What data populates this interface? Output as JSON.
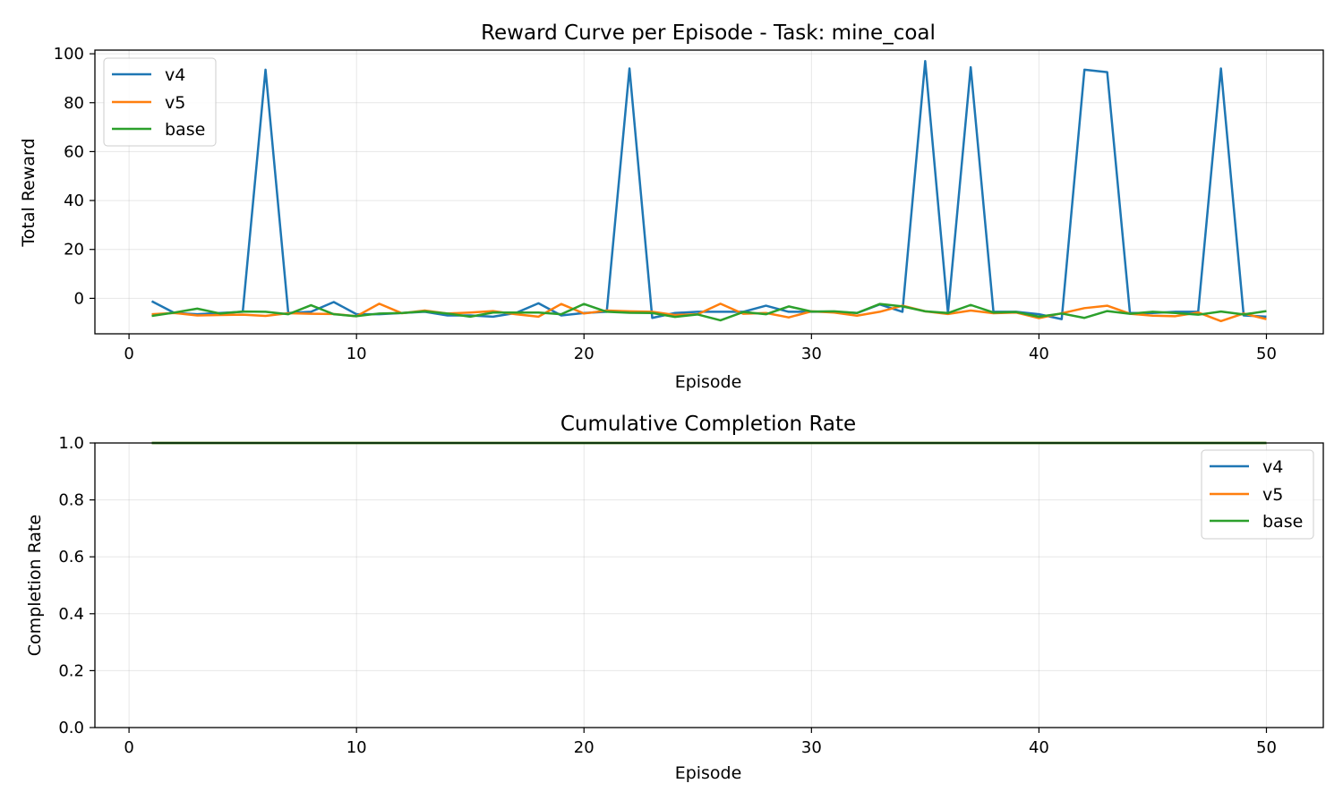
{
  "chart_data": [
    {
      "type": "line",
      "title": "Reward Curve per Episode - Task: mine_coal",
      "xlabel": "Episode",
      "ylabel": "Total Reward",
      "xlim": [
        -1.5,
        52.5
      ],
      "ylim": [
        -14.5,
        101.5
      ],
      "xticks": [
        0,
        10,
        20,
        30,
        40,
        50
      ],
      "yticks": [
        0,
        20,
        40,
        60,
        80,
        100
      ],
      "grid": true,
      "legend": "top-left",
      "x": [
        1,
        2,
        3,
        4,
        5,
        6,
        7,
        8,
        9,
        10,
        11,
        12,
        13,
        14,
        15,
        16,
        17,
        18,
        19,
        20,
        21,
        22,
        23,
        24,
        25,
        26,
        27,
        28,
        29,
        30,
        31,
        32,
        33,
        34,
        35,
        36,
        37,
        38,
        39,
        40,
        41,
        42,
        43,
        44,
        45,
        46,
        47,
        48,
        49,
        50
      ],
      "series": [
        {
          "name": "v4",
          "color": "#1f77b4",
          "values": [
            -1.2,
            -6,
            -6.5,
            -6,
            -5.5,
            93.5,
            -6,
            -5.5,
            -1.5,
            -6.5,
            -6.5,
            -6,
            -5.5,
            -7,
            -7,
            -7.5,
            -6,
            -2,
            -7,
            -6,
            -5.5,
            94,
            -8,
            -6,
            -5.5,
            -5.5,
            -5.5,
            -3,
            -5.5,
            -5.5,
            -5.5,
            -6,
            -2.5,
            -5.5,
            97,
            -6,
            94.5,
            -5.5,
            -5.5,
            -6.5,
            -8.5,
            93.5,
            92.5,
            -6,
            -6,
            -5.5,
            -5.5,
            94,
            -7,
            -7.5
          ]
        },
        {
          "name": "v5",
          "color": "#ff7f0e",
          "values": [
            -6.5,
            -6,
            -7,
            -6.8,
            -6.7,
            -7.2,
            -6.1,
            -6.3,
            -6.4,
            -7.3,
            -2.2,
            -6.1,
            -5,
            -6.2,
            -5.8,
            -5.2,
            -6.5,
            -7.5,
            -2.3,
            -6.2,
            -5,
            -5.3,
            -5.5,
            -6.8,
            -6.5,
            -2.2,
            -6.3,
            -6,
            -7.8,
            -5.3,
            -5.8,
            -7.1,
            -5.5,
            -3,
            -5.3,
            -6.4,
            -5,
            -6.1,
            -5.8,
            -8.1,
            -6.1,
            -4,
            -3,
            -6.3,
            -7.1,
            -7.3,
            -5.8,
            -9.3,
            -6.2,
            -8.5
          ]
        },
        {
          "name": "base",
          "color": "#2ca02c",
          "values": [
            -7.2,
            -5.8,
            -4.2,
            -6.2,
            -5.4,
            -5.5,
            -6.5,
            -2.8,
            -6.5,
            -7.3,
            -6.2,
            -6,
            -5.3,
            -6.2,
            -7.5,
            -5.8,
            -5.8,
            -5.8,
            -6.5,
            -2.3,
            -5.5,
            -5.9,
            -6,
            -7.6,
            -6.6,
            -9,
            -5.6,
            -6.5,
            -3.3,
            -5.4,
            -5.3,
            -6,
            -2.3,
            -3.3,
            -5.3,
            -6,
            -2.7,
            -5.8,
            -5.6,
            -7.5,
            -6.2,
            -8,
            -5.2,
            -6.3,
            -5.5,
            -6,
            -6.7,
            -5.4,
            -6.6,
            -5.2
          ]
        }
      ]
    },
    {
      "type": "line",
      "title": "Cumulative Completion Rate",
      "xlabel": "Episode",
      "ylabel": "Completion Rate",
      "xlim": [
        -1.5,
        52.5
      ],
      "ylim": [
        0,
        1
      ],
      "xticks": [
        0,
        10,
        20,
        30,
        40,
        50
      ],
      "yticks": [
        0.0,
        0.2,
        0.4,
        0.6,
        0.8,
        1.0
      ],
      "yticklabels": [
        "0.0",
        "0.2",
        "0.4",
        "0.6",
        "0.8",
        "1.0"
      ],
      "grid": true,
      "legend": "top-right",
      "x": [
        1,
        50
      ],
      "series": [
        {
          "name": "v4",
          "color": "#1f77b4",
          "values": [
            1.0,
            1.0
          ]
        },
        {
          "name": "v5",
          "color": "#ff7f0e",
          "values": [
            1.0,
            1.0
          ]
        },
        {
          "name": "base",
          "color": "#2ca02c",
          "values": [
            1.0,
            1.0
          ]
        }
      ]
    }
  ]
}
